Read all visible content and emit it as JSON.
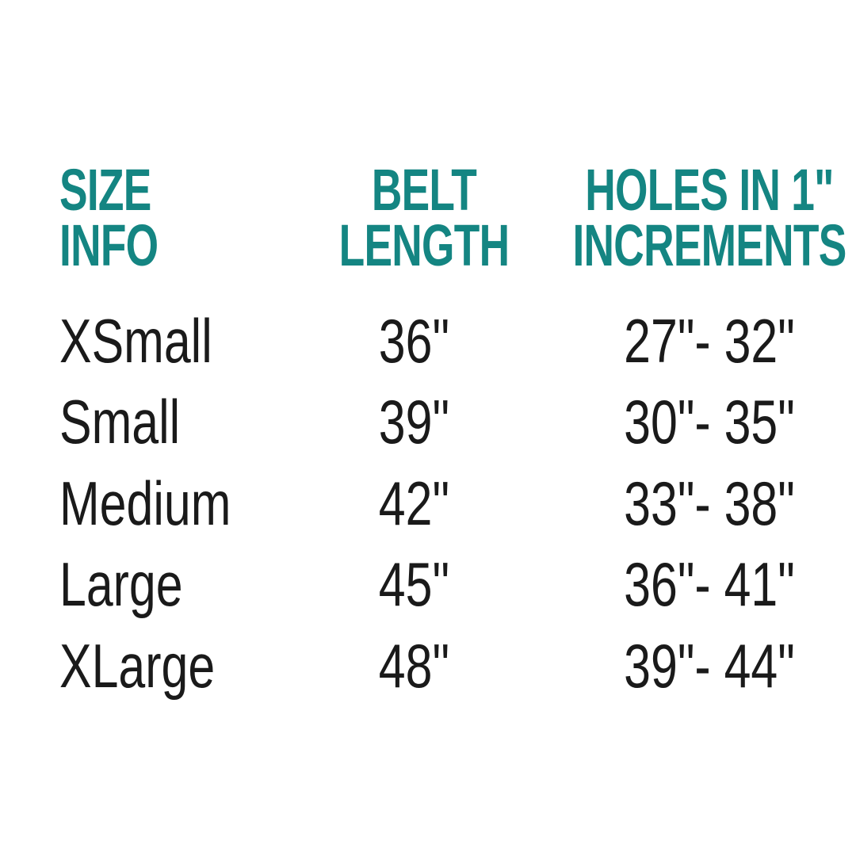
{
  "accent_color": "#148582",
  "headers": [
    {
      "line1": "SIZE",
      "line2": "INFO"
    },
    {
      "line1": "BELT",
      "line2": "LENGTH"
    },
    {
      "line1": "HOLES IN 1\"",
      "line2": "INCREMENTS"
    }
  ],
  "rows": [
    {
      "size": "XSmall",
      "belt": "36\"",
      "holes": "27\"- 32\""
    },
    {
      "size": "Small",
      "belt": "39\"",
      "holes": "30\"- 35\""
    },
    {
      "size": "Medium",
      "belt": "42\"",
      "holes": "33\"- 38\""
    },
    {
      "size": "Large",
      "belt": "45\"",
      "holes": "36\"- 41\""
    },
    {
      "size": "XLarge",
      "belt": "48\"",
      "holes": "39\"- 44\""
    }
  ]
}
